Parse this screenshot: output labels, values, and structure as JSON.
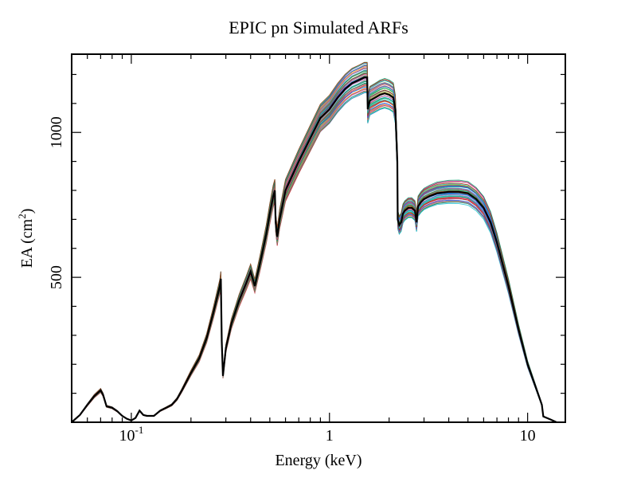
{
  "chart_data": {
    "type": "line",
    "title": "EPIC pn Simulated ARFs",
    "xlabel": "Energy (keV)",
    "ylabel_main": "EA (cm",
    "ylabel_sup": "2",
    "ylabel_close": ")",
    "x_scale": "log",
    "xlim": [
      0.05,
      15.5
    ],
    "ylim": [
      0,
      1270
    ],
    "x_ticks": [
      {
        "value": 0.1,
        "base": "10",
        "sup": "-1"
      },
      {
        "value": 1,
        "base": "1",
        "sup": ""
      },
      {
        "value": 10,
        "base": "10",
        "sup": ""
      }
    ],
    "y_ticks": [
      {
        "value": 500,
        "label": "500"
      },
      {
        "value": 1000,
        "label": "1000"
      }
    ],
    "grid": false,
    "legend": "none",
    "ensemble_colors": [
      "#1f77b4",
      "#d62728",
      "#2ca02c",
      "#17becf",
      "#e377c2",
      "#8c564b",
      "#9467bd",
      "#ff7f0e",
      "#7f7f7f",
      "#bcbd22",
      "#0055ff",
      "#cc0066",
      "#009966",
      "#00cccc",
      "#aa3300"
    ],
    "series": [
      {
        "role": "mean",
        "color": "#000000",
        "x": [
          0.05,
          0.055,
          0.06,
          0.065,
          0.07,
          0.072,
          0.075,
          0.08,
          0.085,
          0.09,
          0.095,
          0.1,
          0.105,
          0.11,
          0.115,
          0.12,
          0.13,
          0.14,
          0.15,
          0.16,
          0.17,
          0.18,
          0.2,
          0.22,
          0.24,
          0.26,
          0.28,
          0.283,
          0.286,
          0.29,
          0.3,
          0.32,
          0.35,
          0.38,
          0.4,
          0.41,
          0.42,
          0.45,
          0.48,
          0.5,
          0.52,
          0.53,
          0.535,
          0.545,
          0.56,
          0.6,
          0.7,
          0.8,
          0.9,
          1.0,
          1.1,
          1.2,
          1.3,
          1.4,
          1.5,
          1.55,
          1.56,
          1.6,
          1.7,
          1.8,
          1.9,
          2.0,
          2.1,
          2.15,
          2.2,
          2.21,
          2.25,
          2.3,
          2.35,
          2.4,
          2.5,
          2.6,
          2.7,
          2.75,
          2.8,
          2.9,
          3.0,
          3.2,
          3.5,
          4.0,
          4.5,
          5.0,
          5.5,
          6.0,
          6.5,
          7.0,
          8.0,
          9.0,
          10.0,
          11.0,
          11.6,
          11.8,
          12.0,
          13.0,
          14.0
        ],
        "y": [
          0,
          25,
          60,
          90,
          110,
          95,
          55,
          50,
          38,
          22,
          12,
          6,
          15,
          40,
          25,
          22,
          22,
          40,
          50,
          60,
          80,
          110,
          170,
          220,
          290,
          380,
          470,
          495,
          280,
          160,
          255,
          340,
          420,
          480,
          520,
          495,
          470,
          560,
          650,
          720,
          780,
          800,
          690,
          640,
          700,
          800,
          900,
          980,
          1050,
          1080,
          1120,
          1150,
          1170,
          1180,
          1190,
          1190,
          1080,
          1110,
          1120,
          1130,
          1135,
          1130,
          1120,
          1080,
          900,
          700,
          680,
          690,
          720,
          730,
          740,
          740,
          730,
          690,
          745,
          760,
          770,
          780,
          790,
          795,
          795,
          790,
          770,
          740,
          690,
          620,
          470,
          320,
          200,
          120,
          75,
          60,
          20,
          10,
          0
        ]
      }
    ]
  }
}
